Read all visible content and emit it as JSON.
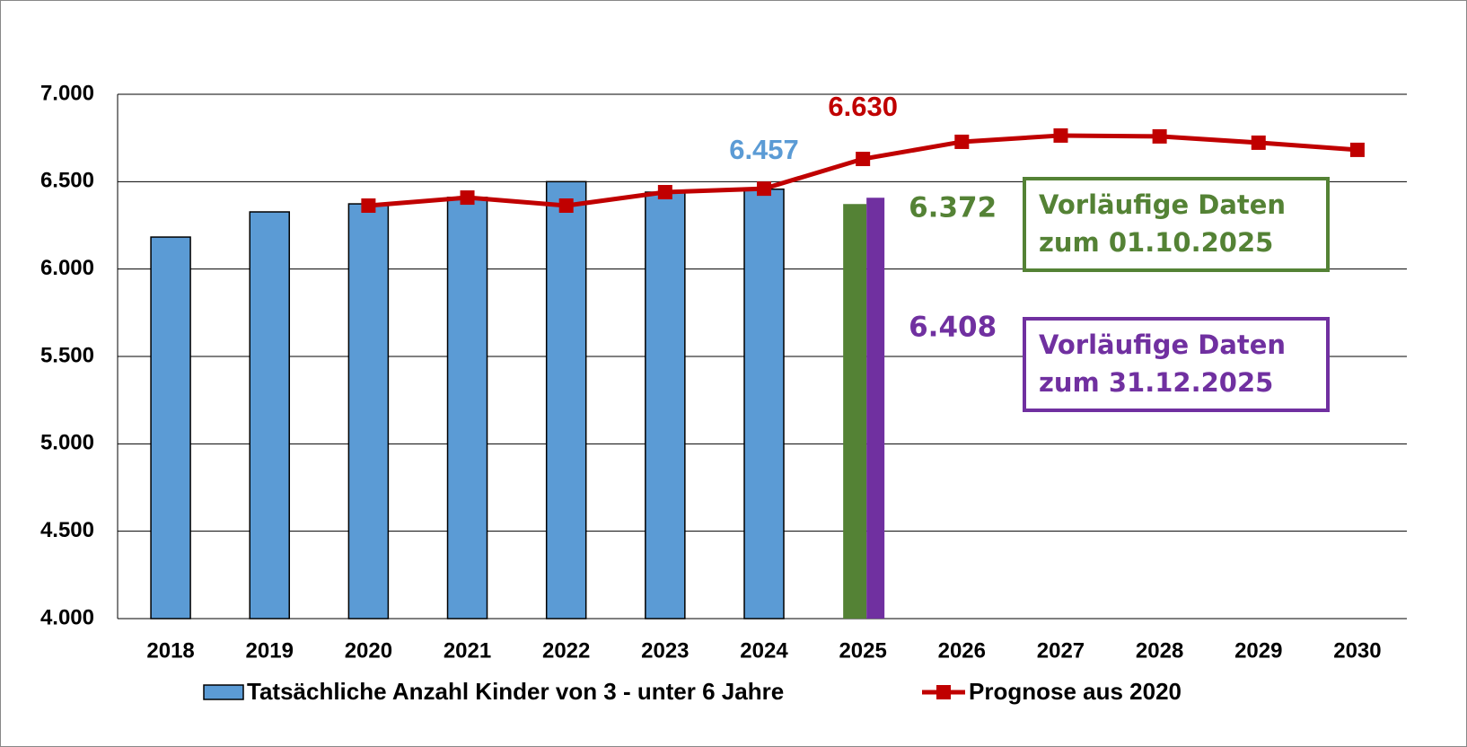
{
  "chart_data": {
    "type": "bar",
    "categories": [
      "2018",
      "2019",
      "2020",
      "2021",
      "2022",
      "2023",
      "2024",
      "2025",
      "2026",
      "2027",
      "2028",
      "2029",
      "2030"
    ],
    "series": [
      {
        "name": "Tatsächliche Anzahl Kinder von 3 - unter 6 Jahre",
        "type": "bar",
        "color": "#5b9bd5",
        "values": [
          6183,
          6327,
          6373,
          6410,
          6500,
          6440,
          6457,
          null,
          null,
          null,
          null,
          null,
          null
        ],
        "value_labels": [
          null,
          null,
          null,
          null,
          null,
          null,
          "6.457",
          null,
          null,
          null,
          null,
          null,
          null
        ]
      },
      {
        "name": "Prognose aus 2020",
        "type": "line",
        "color": "#c00000",
        "values": [
          null,
          null,
          6363,
          6409,
          6363,
          6440,
          6460,
          6630,
          6728,
          6764,
          6759,
          6723,
          6682
        ],
        "value_labels": [
          null,
          null,
          null,
          null,
          null,
          null,
          null,
          "6.630",
          null,
          null,
          null,
          null,
          null
        ]
      },
      {
        "name": "Vorläufige Daten zum 01.10.2025",
        "type": "bar",
        "color": "#548235",
        "values": [
          null,
          null,
          null,
          null,
          null,
          null,
          null,
          6372,
          null,
          null,
          null,
          null,
          null
        ],
        "value_labels": [
          null,
          null,
          null,
          null,
          null,
          null,
          null,
          "6.372",
          null,
          null,
          null,
          null,
          null
        ]
      },
      {
        "name": "Vorläufige Daten zum 31.12.2025",
        "type": "bar",
        "color": "#7030a0",
        "values": [
          null,
          null,
          null,
          null,
          null,
          null,
          null,
          6408,
          null,
          null,
          null,
          null,
          null
        ],
        "value_labels": [
          null,
          null,
          null,
          null,
          null,
          null,
          null,
          "6.408",
          null,
          null,
          null,
          null,
          null
        ]
      }
    ],
    "ylim": [
      4000,
      7000
    ],
    "yticks": [
      {
        "value": 4000,
        "label": "4.000"
      },
      {
        "value": 4500,
        "label": "4.500"
      },
      {
        "value": 5000,
        "label": "5.000"
      },
      {
        "value": 5500,
        "label": "5.500"
      },
      {
        "value": 6000,
        "label": "6.000"
      },
      {
        "value": 6500,
        "label": "6.500"
      },
      {
        "value": 7000,
        "label": "7.000"
      }
    ],
    "grid": true
  }
}
